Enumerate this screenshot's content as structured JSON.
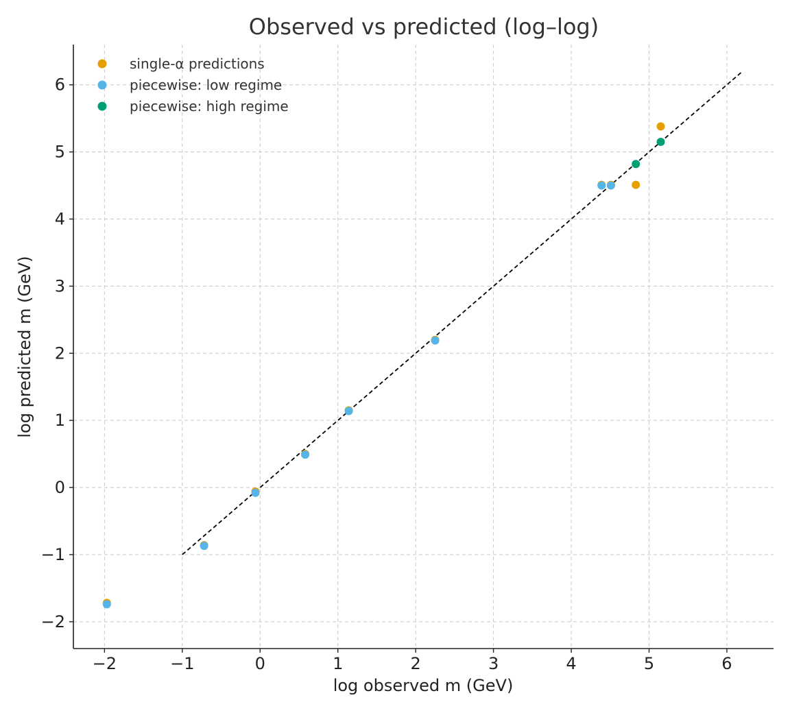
{
  "chart_data": {
    "type": "scatter",
    "title": "Observed vs predicted (log–log)",
    "xlabel": "log observed m (GeV)",
    "ylabel": "log predicted m (GeV)",
    "xlim": [
      -2.4,
      6.6
    ],
    "ylim": [
      -2.4,
      6.6
    ],
    "xticks": [
      -2,
      -1,
      0,
      1,
      2,
      3,
      4,
      5,
      6
    ],
    "yticks": [
      -2,
      -1,
      0,
      1,
      2,
      3,
      4,
      5,
      6
    ],
    "xtick_labels": [
      "−2",
      "−1",
      "0",
      "1",
      "2",
      "3",
      "4",
      "5",
      "6"
    ],
    "ytick_labels": [
      "−2",
      "−1",
      "0",
      "1",
      "2",
      "3",
      "4",
      "5",
      "6"
    ],
    "grid": true,
    "legend_position": "top-left",
    "reference_line": {
      "x": [
        -1,
        6.2
      ],
      "y": [
        -1,
        6.2
      ],
      "style": "dashed",
      "color": "#000000"
    },
    "series": [
      {
        "name": "single-α predictions",
        "color": "#E69F00",
        "points": [
          [
            -1.97,
            -1.72
          ],
          [
            -0.72,
            -0.86
          ],
          [
            -0.06,
            -0.06
          ],
          [
            0.58,
            0.5
          ],
          [
            1.14,
            1.15
          ],
          [
            2.25,
            2.2
          ],
          [
            4.39,
            4.51
          ],
          [
            4.51,
            4.51
          ],
          [
            4.83,
            4.51
          ],
          [
            5.15,
            5.38
          ]
        ]
      },
      {
        "name": "piecewise: low regime",
        "color": "#56B4E9",
        "points": [
          [
            -1.97,
            -1.74
          ],
          [
            -0.72,
            -0.87
          ],
          [
            -0.06,
            -0.08
          ],
          [
            0.58,
            0.49
          ],
          [
            1.14,
            1.14
          ],
          [
            2.25,
            2.19
          ],
          [
            4.39,
            4.5
          ],
          [
            4.51,
            4.5
          ]
        ]
      },
      {
        "name": "piecewise: high regime",
        "color": "#009E73",
        "points": [
          [
            4.83,
            4.82
          ],
          [
            5.15,
            5.15
          ]
        ]
      }
    ]
  }
}
